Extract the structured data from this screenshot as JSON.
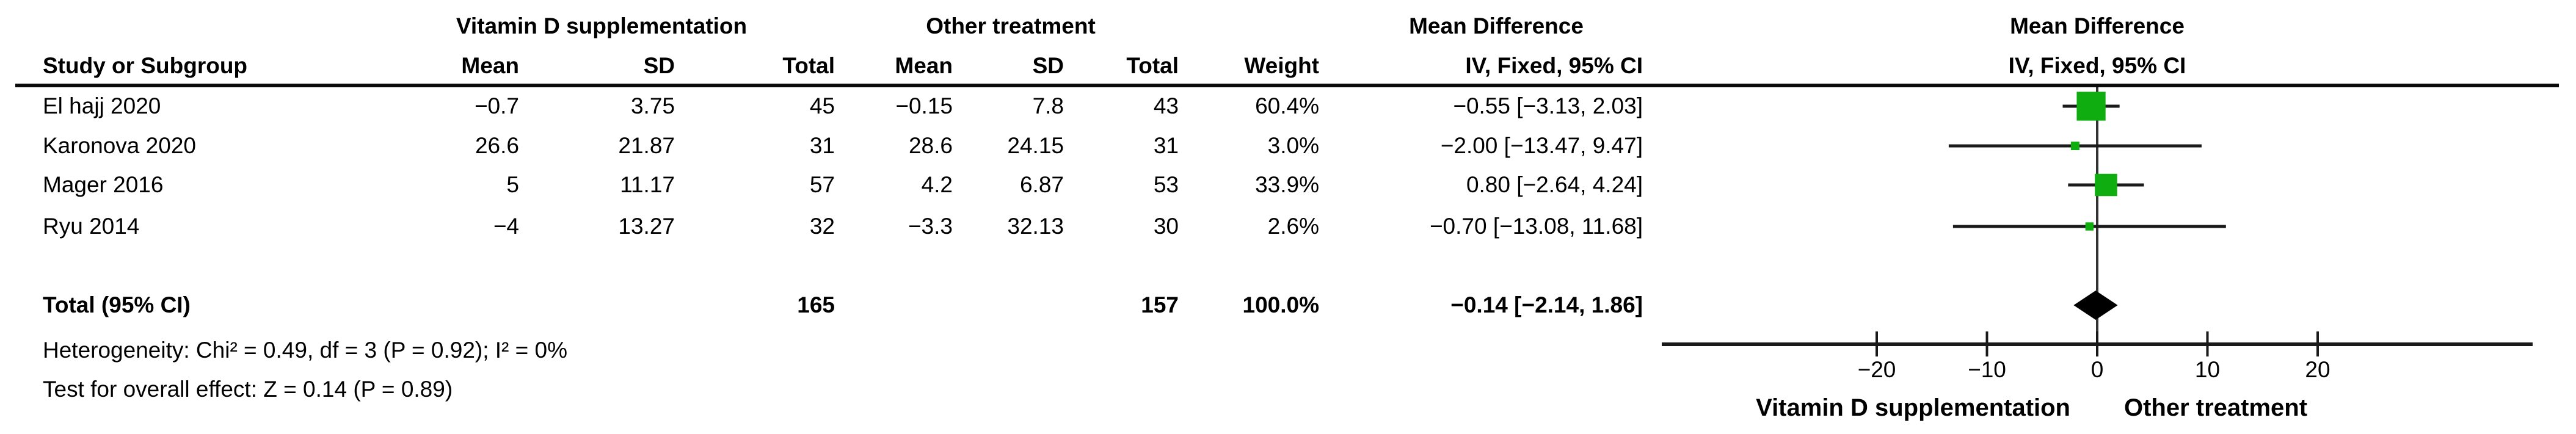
{
  "table": {
    "group_headers": {
      "vd": "Vitamin D supplementation",
      "ot": "Other treatment",
      "md": "Mean Difference"
    },
    "col_headers": {
      "study": "Study or Subgroup",
      "vd_mean": "Mean",
      "vd_sd": "SD",
      "vd_total": "Total",
      "ot_mean": "Mean",
      "ot_sd": "SD",
      "ot_total": "Total",
      "weight": "Weight",
      "md_ci": "IV, Fixed, 95% CI"
    },
    "studies": [
      {
        "name": "El hajj 2020",
        "vd_mean": "−0.7",
        "vd_sd": "3.75",
        "vd_total": "45",
        "ot_mean": "−0.15",
        "ot_sd": "7.8",
        "ot_total": "43",
        "weight": "60.4%",
        "md_ci": "−0.55 [−3.13, 2.03]"
      },
      {
        "name": "Karonova 2020",
        "vd_mean": "26.6",
        "vd_sd": "21.87",
        "vd_total": "31",
        "ot_mean": "28.6",
        "ot_sd": "24.15",
        "ot_total": "31",
        "weight": "3.0%",
        "md_ci": "−2.00 [−13.47, 9.47]"
      },
      {
        "name": "Mager 2016",
        "vd_mean": "5",
        "vd_sd": "11.17",
        "vd_total": "57",
        "ot_mean": "4.2",
        "ot_sd": "6.87",
        "ot_total": "53",
        "weight": "33.9%",
        "md_ci": "0.80 [−2.64, 4.24]"
      },
      {
        "name": "Ryu 2014",
        "vd_mean": "−4",
        "vd_sd": "13.27",
        "vd_total": "32",
        "ot_mean": "−3.3",
        "ot_sd": "32.13",
        "ot_total": "30",
        "weight": "2.6%",
        "md_ci": "−0.70 [−13.08, 11.68]"
      }
    ],
    "total_row": {
      "label": "Total (95% CI)",
      "vd_total": "165",
      "ot_total": "157",
      "weight": "100.0%",
      "md_ci": "−0.14 [−2.14, 1.86]"
    },
    "footnotes": {
      "heterogeneity": "Heterogeneity: Chi² = 0.49, df = 3 (P = 0.92); I² = 0%",
      "overall_effect": "Test for overall effect: Z = 0.14 (P = 0.89)"
    }
  },
  "plot": {
    "header_line1": "Mean Difference",
    "header_line2": "IV, Fixed, 95% CI",
    "caption_left": "Vitamin D supplementation",
    "caption_right": "Other treatment"
  },
  "colors": {
    "marker_green": "#0fad0f",
    "line_black": "#1a1a1a",
    "diamond_black": "#000000"
  },
  "chart_data": {
    "type": "scatter",
    "subtype": "forest_plot",
    "title": "Mean Difference — IV, Fixed, 95% CI",
    "effect_measure": "Mean Difference",
    "model": "IV, Fixed, 95% CI",
    "studies": [
      {
        "name": "El hajj 2020",
        "md": -0.55,
        "ci_low": -3.13,
        "ci_high": 2.03,
        "weight_pct": 60.4
      },
      {
        "name": "Karonova 2020",
        "md": -2.0,
        "ci_low": -13.47,
        "ci_high": 9.47,
        "weight_pct": 3.0
      },
      {
        "name": "Mager 2016",
        "md": 0.8,
        "ci_low": -2.64,
        "ci_high": 4.24,
        "weight_pct": 33.9
      },
      {
        "name": "Ryu 2014",
        "md": -0.7,
        "ci_low": -13.08,
        "ci_high": 11.68,
        "weight_pct": 2.6
      }
    ],
    "total": {
      "name": "Total (95% CI)",
      "md": -0.14,
      "ci_low": -2.14,
      "ci_high": 1.86,
      "weight_pct": 100.0
    },
    "x_ticks": [
      -20,
      -10,
      0,
      10,
      20
    ],
    "xlim": [
      -39.5,
      39.5
    ],
    "favours_left": "Vitamin D supplementation",
    "favours_right": "Other treatment",
    "heterogeneity": "Chi² = 0.49, df = 3 (P = 0.92); I² = 0%",
    "overall_effect": "Z = 0.14 (P = 0.89)",
    "grid": false,
    "legend": false
  }
}
